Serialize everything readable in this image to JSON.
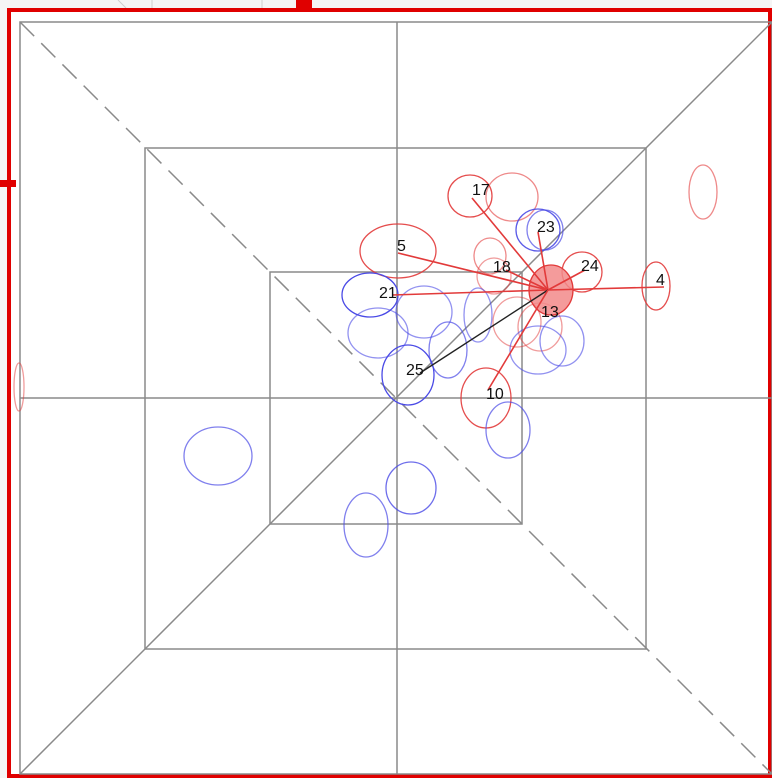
{
  "diagram": {
    "colors": {
      "frame_border": "#e00000",
      "grid_line": "#8a8a8a",
      "red_node": "#e23a3a",
      "blue_node": "#4a4ae6",
      "selected_fill": "#f28a8a",
      "highlight_edge": "#222222"
    },
    "selected_node": "13",
    "labeled_nodes": [
      {
        "id": "17",
        "label": "17"
      },
      {
        "id": "23",
        "label": "23"
      },
      {
        "id": "5",
        "label": "5"
      },
      {
        "id": "18",
        "label": "18"
      },
      {
        "id": "24",
        "label": "24"
      },
      {
        "id": "4",
        "label": "4"
      },
      {
        "id": "21",
        "label": "21"
      },
      {
        "id": "13",
        "label": "13"
      },
      {
        "id": "25",
        "label": "25"
      },
      {
        "id": "10",
        "label": "10"
      }
    ],
    "edges_from_selected": [
      "17",
      "23",
      "5",
      "18",
      "24",
      "4",
      "21",
      "25",
      "10"
    ],
    "highlight_edge_to": "25"
  }
}
